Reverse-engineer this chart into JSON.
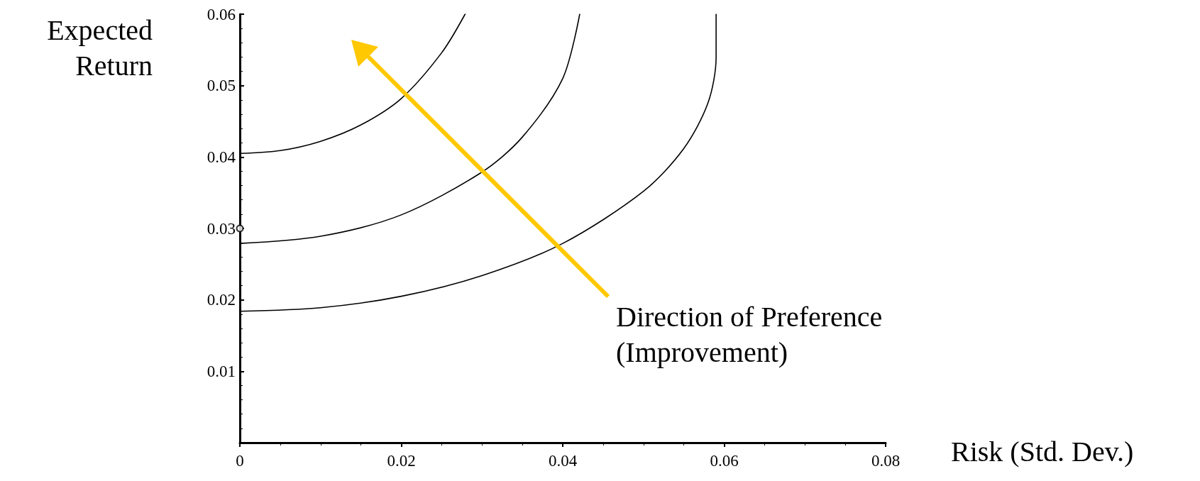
{
  "chart_data": {
    "type": "line",
    "xlabel": "Risk (Std. Dev.)",
    "ylabel": "Expected Return",
    "xlim": [
      0,
      0.08
    ],
    "xticks": [
      0,
      0.02,
      0.04,
      0.06,
      0.08
    ],
    "ylim": [
      0,
      0.06
    ],
    "yticks": [
      {
        "value": 0,
        "label": null
      },
      0.01,
      0.02,
      0.03,
      0.04,
      0.05,
      0.06
    ],
    "marker": "none",
    "line_style": "solid",
    "series": [
      {
        "color": "#000000",
        "x": [
          0,
          0.005,
          0.01,
          0.015,
          0.02,
          0.025,
          0.0279
        ],
        "values": [
          0.0405,
          0.0409,
          0.0422,
          0.0445,
          0.0482,
          0.0546,
          0.06
        ]
      },
      {
        "color": "#000000",
        "x": [
          0,
          0.01,
          0.02,
          0.03,
          0.035,
          0.04,
          0.0421
        ],
        "values": [
          0.0279,
          0.0289,
          0.0319,
          0.0379,
          0.0428,
          0.051,
          0.06
        ]
      },
      {
        "color": "#000000",
        "x": [
          0,
          0.01,
          0.02,
          0.03,
          0.04,
          0.05,
          0.055,
          0.058,
          0.059,
          0.059
        ],
        "values": [
          0.0184,
          0.0189,
          0.0205,
          0.0234,
          0.0279,
          0.0352,
          0.0412,
          0.0476,
          0.054,
          0.06
        ]
      },
      {
        "type": "scatter",
        "marker": "circle",
        "color": "#000000",
        "x": [
          0
        ],
        "values": [
          0.03
        ]
      }
    ],
    "annotations": [
      "Direction of Preference (Improvement)"
    ]
  }
}
